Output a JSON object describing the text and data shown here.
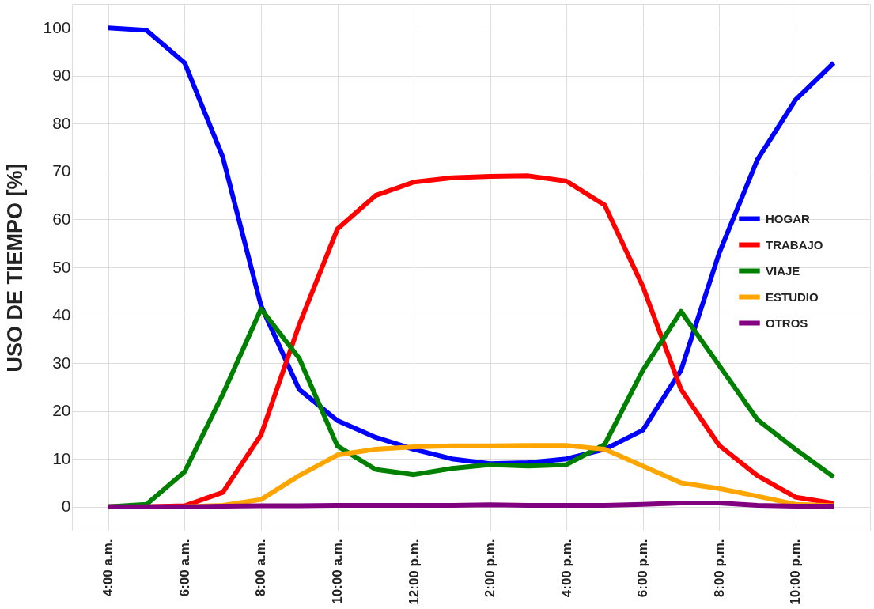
{
  "chart_data": {
    "type": "line",
    "ylabel": "USO DE TIEMPO [%]",
    "x": [
      4,
      5,
      6,
      7,
      8,
      9,
      10,
      11,
      12,
      13,
      14,
      15,
      16,
      17,
      18,
      19,
      20,
      21,
      22,
      23
    ],
    "xlim": [
      3.05,
      23.95
    ],
    "xticks": [
      {
        "value": 4,
        "label": "4:00 a.m."
      },
      {
        "value": 6,
        "label": "6:00 a.m."
      },
      {
        "value": 8,
        "label": "8:00 a.m."
      },
      {
        "value": 10,
        "label": "10:00 a.m."
      },
      {
        "value": 12,
        "label": "12:00 p.m."
      },
      {
        "value": 14,
        "label": "2:00 p.m."
      },
      {
        "value": 16,
        "label": "4:00 p.m."
      },
      {
        "value": 18,
        "label": "6:00 p.m."
      },
      {
        "value": 20,
        "label": "8:00 p.m."
      },
      {
        "value": 22,
        "label": "10:00 p.m."
      }
    ],
    "ylim": [
      -5,
      105
    ],
    "yticks": [
      0,
      10,
      20,
      30,
      40,
      50,
      60,
      70,
      80,
      90,
      100
    ],
    "grid": true,
    "legend": "right",
    "marker": "none",
    "line_style": "solid",
    "series": [
      {
        "name": "HOGAR",
        "color": "#0000ff",
        "values": [
          100,
          99.5,
          92.7,
          73,
          42,
          24.5,
          18,
          14.5,
          12,
          10,
          9,
          9.2,
          10,
          12,
          16,
          28.5,
          53,
          72.5,
          85,
          92.7
        ]
      },
      {
        "name": "TRABAJO",
        "color": "#ff0000",
        "values": [
          0,
          0,
          0.2,
          3,
          15,
          38,
          58,
          65,
          67.8,
          68.7,
          69,
          69.1,
          68,
          63,
          46,
          24.5,
          12.8,
          6.5,
          2,
          0.7
        ]
      },
      {
        "name": "VIAJE",
        "color": "#008000",
        "values": [
          0,
          0.5,
          7.3,
          23.5,
          41.3,
          31,
          12.7,
          7.8,
          6.7,
          8,
          8.8,
          8.5,
          8.8,
          13,
          28.5,
          40.8,
          29.5,
          18.2,
          12,
          6.2
        ]
      },
      {
        "name": "ESTUDIO",
        "color": "#ffa500",
        "values": [
          null,
          null,
          0,
          0.3,
          1.5,
          6.5,
          10.8,
          12,
          12.5,
          12.7,
          12.7,
          12.8,
          12.8,
          12,
          8.5,
          5,
          3.8,
          2.2,
          0.5,
          0.2
        ]
      },
      {
        "name": "OTROS",
        "color": "#800080",
        "values": [
          0,
          0,
          0,
          0.1,
          0.2,
          0.2,
          0.3,
          0.3,
          0.3,
          0.3,
          0.4,
          0.3,
          0.3,
          0.3,
          0.5,
          0.8,
          0.8,
          0.3,
          0.1,
          0.1
        ]
      }
    ]
  }
}
